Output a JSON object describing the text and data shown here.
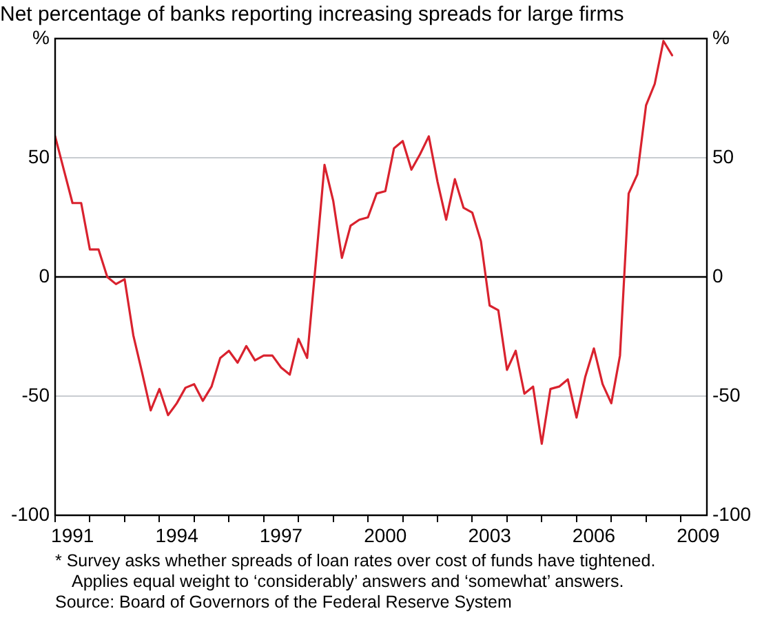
{
  "chart_data": {
    "type": "line",
    "title": "Net percentage of banks reporting increasing spreads for large firms",
    "annotations": [
      "* Survey asks whether spreads of loan rates over cost of funds have tightened.",
      "Applies equal weight to ‘considerably’ answers and ‘somewhat’ answers.",
      "Source: Board of Governors of the Federal Reserve System"
    ],
    "x": [
      1991,
      1991.25,
      1991.5,
      1991.75,
      1992,
      1992.25,
      1992.5,
      1992.75,
      1993,
      1993.25,
      1993.5,
      1993.75,
      1994,
      1994.25,
      1994.5,
      1994.75,
      1995,
      1995.25,
      1995.5,
      1995.75,
      1996,
      1996.25,
      1996.5,
      1996.75,
      1997,
      1997.25,
      1997.5,
      1997.75,
      1998,
      1998.25,
      1998.5,
      1998.75,
      1999,
      1999.25,
      1999.5,
      1999.75,
      2000,
      2000.25,
      2000.5,
      2000.75,
      2001,
      2001.25,
      2001.5,
      2001.75,
      2002,
      2002.25,
      2002.5,
      2002.75,
      2003,
      2003.25,
      2003.5,
      2003.75,
      2004,
      2004.25,
      2004.5,
      2004.75,
      2005,
      2005.25,
      2005.5,
      2005.75,
      2006,
      2006.25,
      2006.5,
      2006.75,
      2007,
      2007.25,
      2007.5,
      2007.75,
      2008,
      2008.25,
      2008.5,
      2008.75
    ],
    "series": [
      {
        "color": "#d9222e",
        "values": [
          59,
          45,
          31,
          31,
          11.5,
          11.5,
          0,
          -3,
          -1,
          -24.5,
          -40,
          -56,
          -47,
          -58,
          -53,
          -46.5,
          -45,
          -52,
          -46,
          -34,
          -31,
          -36,
          -29,
          -35,
          -33,
          -33,
          -38,
          -41,
          -26,
          -34,
          6,
          47,
          32,
          8,
          21.5,
          24,
          25,
          35,
          36,
          54,
          57,
          45,
          51.5,
          59,
          40,
          24,
          41,
          29,
          27,
          15,
          -12,
          -14,
          -39,
          -31,
          -49,
          -46,
          -70,
          -47,
          -46,
          -43,
          -59,
          -42,
          -30,
          -45,
          -53,
          -33,
          35,
          43,
          72,
          81,
          99,
          93
        ]
      }
    ],
    "xlim": [
      1991,
      2009.75
    ],
    "xticks": [
      {
        "value": 1991,
        "label": null
      },
      {
        "value": 1991.5,
        "label": "1991"
      },
      {
        "value": 1992,
        "label": null
      },
      {
        "value": 1993,
        "label": null
      },
      {
        "value": 1994,
        "label": null
      },
      {
        "value": 1994.5,
        "label": "1994"
      },
      {
        "value": 1995,
        "label": null
      },
      {
        "value": 1996,
        "label": null
      },
      {
        "value": 1997,
        "label": null
      },
      {
        "value": 1997.5,
        "label": "1997"
      },
      {
        "value": 1998,
        "label": null
      },
      {
        "value": 1999,
        "label": null
      },
      {
        "value": 2000,
        "label": null
      },
      {
        "value": 2000.5,
        "label": "2000"
      },
      {
        "value": 2001,
        "label": null
      },
      {
        "value": 2002,
        "label": null
      },
      {
        "value": 2003,
        "label": null
      },
      {
        "value": 2003.5,
        "label": "2003"
      },
      {
        "value": 2004,
        "label": null
      },
      {
        "value": 2005,
        "label": null
      },
      {
        "value": 2006,
        "label": null
      },
      {
        "value": 2006.5,
        "label": "2006"
      },
      {
        "value": 2007,
        "label": null
      },
      {
        "value": 2008,
        "label": null
      },
      {
        "value": 2009,
        "label": null
      },
      {
        "value": 2009.5,
        "label": "2009"
      }
    ],
    "ylim": [
      -100,
      100
    ],
    "yticks": [
      -100,
      -50,
      0,
      50,
      {
        "value": 100,
        "label": "%"
      }
    ],
    "y2lim": [
      -100,
      100
    ],
    "y2ticks": [
      -100,
      -50,
      0,
      50,
      {
        "value": 100,
        "label": "%"
      }
    ],
    "ref_lines": [
      {
        "axis": "y",
        "value": 0,
        "color": "#000000"
      }
    ],
    "grid": "y",
    "legend": false,
    "marker": "none",
    "line_style": "solid"
  }
}
